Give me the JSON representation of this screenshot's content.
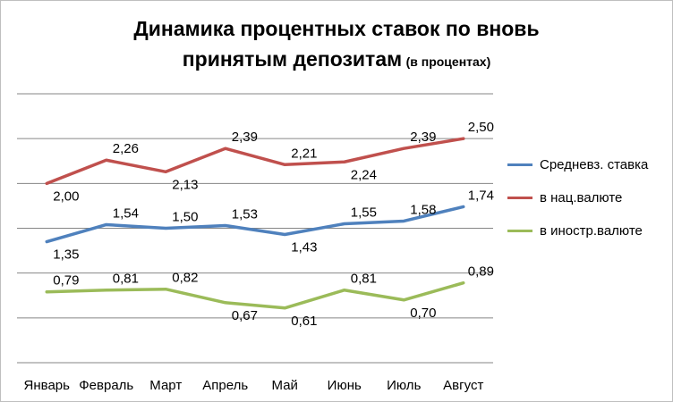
{
  "title": {
    "main_line1": "Динамика процентных ставок по вновь",
    "main_line2": "принятым депозитам",
    "suffix": "(в процентах)"
  },
  "chart_data": {
    "type": "line",
    "title": "Динамика процентных ставок по вновь принятым депозитам (в процентах)",
    "categories": [
      "Январь",
      "Февраль",
      "Март",
      "Апрель",
      "Май",
      "Июнь",
      "Июль",
      "Август"
    ],
    "series": [
      {
        "name": "Средневз. ставка",
        "color": "#4f81bd",
        "values": [
          1.35,
          1.54,
          1.5,
          1.53,
          1.43,
          1.55,
          1.58,
          1.74
        ],
        "labels": [
          "1,35",
          "1,54",
          "1,50",
          "1,53",
          "1,43",
          "1,55",
          "1,58",
          "1,74"
        ]
      },
      {
        "name": "в нац.валюте",
        "color": "#c0504d",
        "values": [
          2.0,
          2.26,
          2.13,
          2.39,
          2.21,
          2.24,
          2.39,
          2.5
        ],
        "labels": [
          "2,00",
          "2,26",
          "2,13",
          "2,39",
          "2,21",
          "2,24",
          "2,39",
          "2,50"
        ]
      },
      {
        "name": "в иностр.валюте",
        "color": "#9bbb59",
        "values": [
          0.79,
          0.81,
          0.82,
          0.67,
          0.61,
          0.81,
          0.7,
          0.89
        ],
        "labels": [
          "0,79",
          "0,81",
          "0,82",
          "0,67",
          "0,61",
          "0,81",
          "0,70",
          "0,89"
        ]
      }
    ],
    "ylim": [
      0,
      3
    ],
    "y_gridlines": [
      0,
      0.5,
      1,
      1.5,
      2,
      2.5,
      3
    ],
    "grid": true,
    "y_axis_labels_shown": false,
    "legend_position": "right",
    "gridline_color": "#868686"
  }
}
